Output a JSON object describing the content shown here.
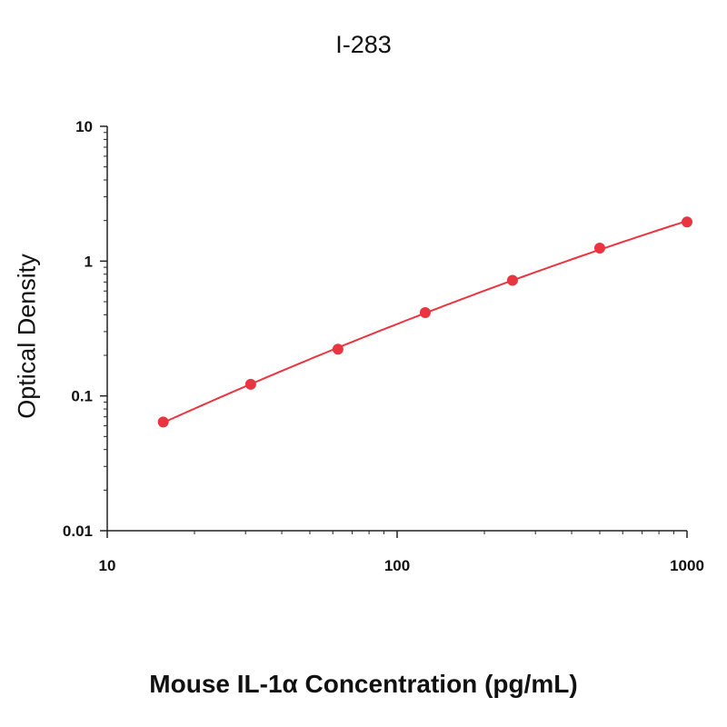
{
  "chart_data": {
    "type": "scatter",
    "title": "I-283",
    "xlabel": "Mouse IL-1α Concentration (pg/mL)",
    "ylabel": "Optical Density",
    "x_scale": "log",
    "y_scale": "log",
    "xlim": [
      10,
      1000
    ],
    "ylim": [
      0.01,
      10
    ],
    "x_ticks": [
      {
        "value": 10,
        "label": "10"
      },
      {
        "value": 100,
        "label": "100"
      },
      {
        "value": 1000,
        "label": "1000"
      }
    ],
    "y_ticks": [
      {
        "value": 0.01,
        "label": "0.01"
      },
      {
        "value": 0.1,
        "label": "0.1"
      },
      {
        "value": 1,
        "label": "1"
      },
      {
        "value": 10,
        "label": "10"
      }
    ],
    "grid": false,
    "legend": "none",
    "color": "#e8353f",
    "fit_curve": true,
    "points": [
      {
        "x": 15.6,
        "y": 0.064
      },
      {
        "x": 31.25,
        "y": 0.122
      },
      {
        "x": 62.5,
        "y": 0.222
      },
      {
        "x": 125,
        "y": 0.415
      },
      {
        "x": 250,
        "y": 0.72
      },
      {
        "x": 500,
        "y": 1.25
      },
      {
        "x": 1000,
        "y": 1.95
      }
    ]
  }
}
